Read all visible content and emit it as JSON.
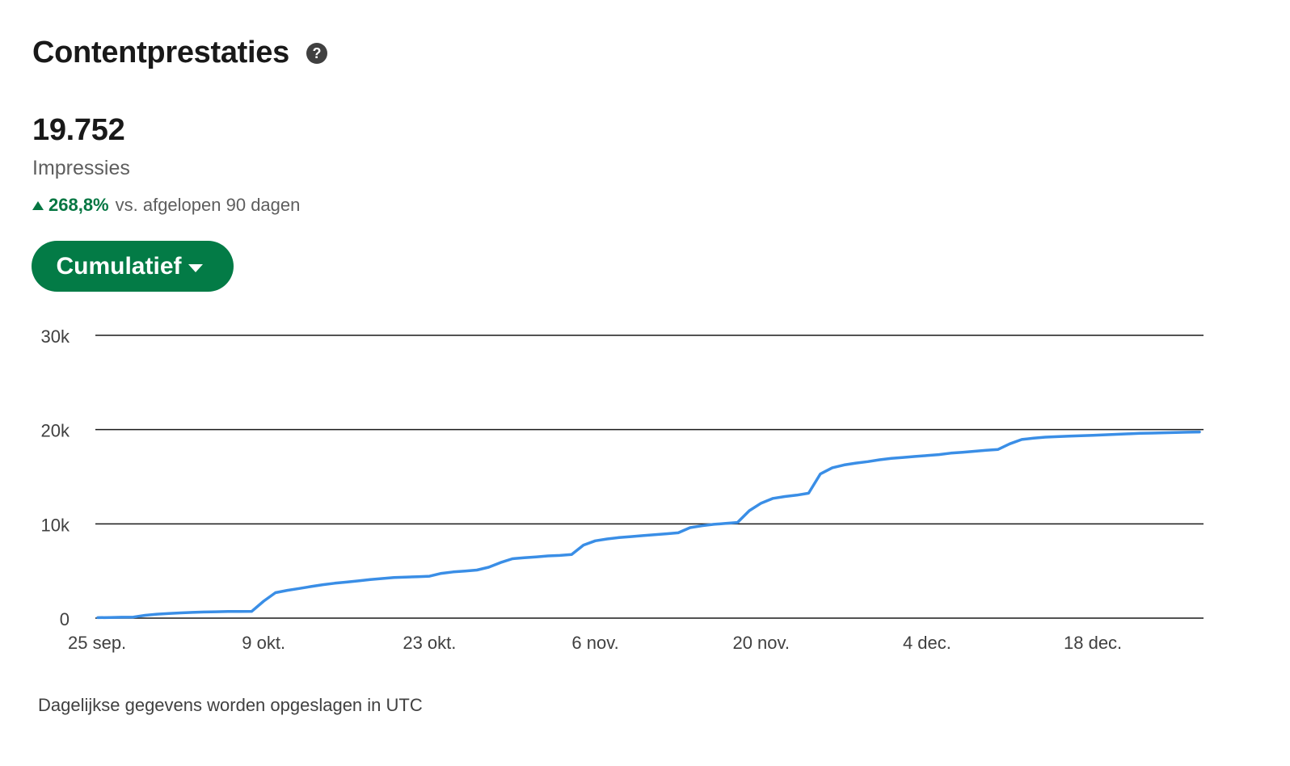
{
  "header": {
    "title": "Contentprestaties",
    "help_icon": "question-circle-icon"
  },
  "metric": {
    "value": "19.752",
    "label": "Impressies",
    "change": "268,8%",
    "change_suffix": "vs. afgelopen 90 dagen",
    "change_direction": "up"
  },
  "toggle": {
    "label": "Cumulatief"
  },
  "footnote": "Dagelijkse gegevens worden opgeslagen in UTC",
  "colors": {
    "accent": "#037b46",
    "positive": "#057642",
    "line": "#3a8ee6"
  },
  "chart_data": {
    "type": "line",
    "title": "",
    "xlabel": "",
    "ylabel": "",
    "ylim": [
      0,
      30000
    ],
    "y_ticks": [
      0,
      10000,
      20000,
      30000
    ],
    "y_tick_labels": [
      "0",
      "10k",
      "20k",
      "30k"
    ],
    "x_ticks": [
      0,
      14,
      28,
      42,
      56,
      70,
      84
    ],
    "x_tick_labels": [
      "25 sep.",
      "9 okt.",
      "23 okt.",
      "6 nov.",
      "20 nov.",
      "4 dec.",
      "18 dec."
    ],
    "grid": true,
    "series": [
      {
        "values": [
          50,
          70,
          90,
          110,
          300,
          420,
          500,
          560,
          610,
          650,
          680,
          700,
          710,
          720,
          1800,
          2700,
          2950,
          3150,
          3350,
          3550,
          3700,
          3820,
          3950,
          4100,
          4200,
          4300,
          4350,
          4400,
          4450,
          4750,
          4900,
          5000,
          5100,
          5400,
          5900,
          6300,
          6400,
          6500,
          6600,
          6650,
          6750,
          7750,
          8200,
          8400,
          8550,
          8650,
          8750,
          8850,
          8950,
          9050,
          9600,
          9800,
          9950,
          10050,
          10150,
          11400,
          12200,
          12700,
          12900,
          13050,
          13250,
          15300,
          15950,
          16250,
          16450,
          16600,
          16800,
          16950,
          17050,
          17150,
          17250,
          17350,
          17500,
          17600,
          17700,
          17800,
          17900,
          18500,
          18950,
          19100,
          19200,
          19250,
          19300,
          19350,
          19400,
          19450,
          19500,
          19550,
          19600,
          19630,
          19660,
          19690,
          19720,
          19752
        ]
      }
    ]
  }
}
